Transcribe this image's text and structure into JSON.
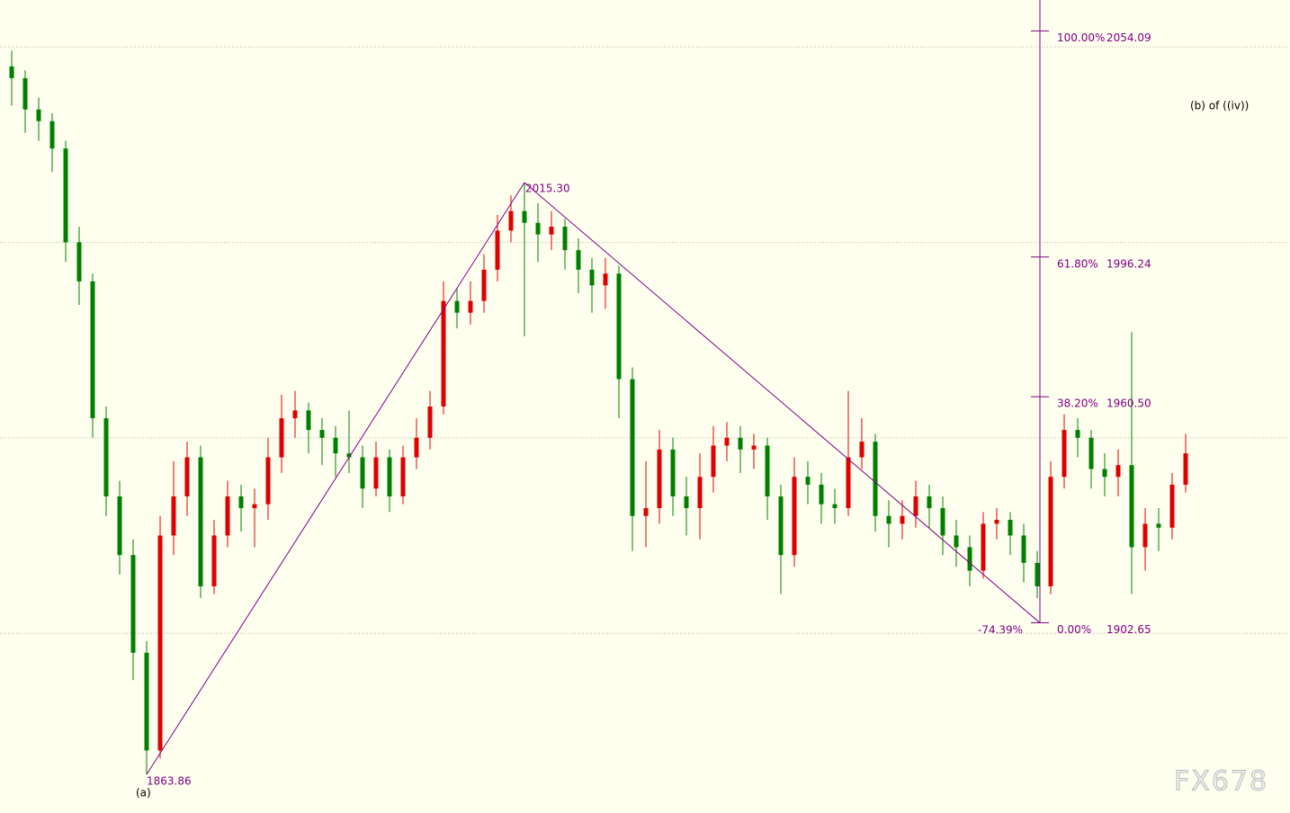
{
  "chart_data": {
    "type": "candlestick",
    "up_color": "#e00000",
    "down_color": "#008000",
    "ylim": [
      1854,
      2062
    ],
    "grid_lines": [
      1900,
      1950,
      2000,
      2050
    ],
    "open": [
      2045,
      2042,
      2034,
      2031,
      2024,
      2000,
      1990,
      1955,
      1935,
      1920,
      1895,
      1870,
      1925,
      1935,
      1945,
      1912,
      1925,
      1935,
      1932,
      1933,
      1945,
      1955,
      1957,
      1952,
      1950,
      1946,
      1945,
      1937,
      1945,
      1935,
      1945,
      1950,
      1958,
      1985,
      1982,
      1985,
      1993,
      2003,
      2008,
      2005,
      2002,
      2004,
      1998,
      1993,
      1989,
      1992,
      1965,
      1930,
      1932,
      1947,
      1935,
      1932,
      1940,
      1948,
      1950,
      1947,
      1948,
      1935,
      1920,
      1940,
      1938,
      1933,
      1932,
      1945,
      1949,
      1930,
      1928,
      1930,
      1935,
      1932,
      1925,
      1922,
      1916,
      1928,
      1929,
      1925,
      1918,
      1912,
      1940,
      1952,
      1950,
      1942,
      1940,
      1943,
      1922,
      1928,
      1927,
      1938
    ],
    "high": [
      2049,
      2044,
      2037,
      2033,
      2026,
      2004,
      1992,
      1958,
      1939,
      1924,
      1898,
      1930,
      1944,
      1949,
      1948,
      1929,
      1939,
      1938,
      1937,
      1950,
      1961,
      1962,
      1959,
      1955,
      1953,
      1957,
      1948,
      1949,
      1947,
      1948,
      1955,
      1962,
      1990,
      1988,
      1990,
      1997,
      2007,
      2012,
      2015.3,
      2010,
      2008,
      2006,
      2001,
      1996,
      1996,
      1994,
      1968,
      1944,
      1952,
      1950,
      1940,
      1946,
      1953,
      1954,
      1953,
      1951,
      1950,
      1938,
      1945,
      1944,
      1941,
      1937,
      1962,
      1955,
      1951,
      1934,
      1934,
      1939,
      1938,
      1935,
      1929,
      1925,
      1931,
      1932,
      1931,
      1928,
      1921,
      1944,
      1956,
      1955,
      1952,
      1946,
      1947,
      1977,
      1932,
      1932,
      1941,
      1951
    ],
    "low": [
      2035,
      2028,
      2026,
      2018,
      1995,
      1984,
      1950,
      1930,
      1915,
      1888,
      1863.86,
      1868,
      1920,
      1930,
      1909,
      1910,
      1922,
      1926,
      1922,
      1929,
      1941,
      1950,
      1946,
      1943,
      1940,
      1941,
      1932,
      1935,
      1931,
      1933,
      1942,
      1947,
      1956,
      1978,
      1979,
      1982,
      1990,
      2000,
      1976,
      1995,
      1998,
      1993,
      1987,
      1982,
      1983,
      1955,
      1921,
      1922,
      1928,
      1930,
      1925,
      1924,
      1936,
      1944,
      1941,
      1942,
      1929,
      1910,
      1917,
      1933,
      1928,
      1928,
      1930,
      1942,
      1926,
      1922,
      1924,
      1927,
      1927,
      1920,
      1917,
      1912,
      1914,
      1924,
      1920,
      1913,
      1909,
      1910,
      1937,
      1945,
      1937,
      1935,
      1935,
      1910,
      1916,
      1921,
      1924,
      1936
    ],
    "close": [
      2042,
      2034,
      2031,
      2024,
      2000,
      1990,
      1955,
      1935,
      1920,
      1895,
      1870,
      1925,
      1935,
      1945,
      1912,
      1925,
      1935,
      1932,
      1933,
      1945,
      1955,
      1957,
      1952,
      1950,
      1946,
      1945,
      1937,
      1945,
      1935,
      1945,
      1950,
      1958,
      1985,
      1982,
      1985,
      1993,
      2003,
      2008,
      2005,
      2002,
      2004,
      1998,
      1993,
      1989,
      1992,
      1965,
      1930,
      1932,
      1947,
      1935,
      1932,
      1940,
      1948,
      1950,
      1947,
      1948,
      1935,
      1920,
      1940,
      1938,
      1933,
      1932,
      1945,
      1949,
      1930,
      1928,
      1930,
      1935,
      1932,
      1925,
      1922,
      1916,
      1928,
      1929,
      1925,
      1918,
      1912,
      1940,
      1952,
      1950,
      1942,
      1940,
      1943,
      1922,
      1928,
      1927,
      1938,
      1946
    ],
    "swing_low": {
      "value": 1863.86,
      "wave": "(a)"
    },
    "swing_high": {
      "value": 2015.3,
      "label": "2015.30"
    },
    "wave_label": "(b) of ((iv))",
    "fib_color": "#800080",
    "fib_levels": [
      {
        "percent": "100.00%",
        "value": 2054.09,
        "label": "2054.09"
      },
      {
        "percent": "61.80%",
        "value": 1996.24,
        "label": "1996.24"
      },
      {
        "percent": "38.20%",
        "value": 1960.5,
        "label": "1960.50"
      },
      {
        "percent": "0.00%",
        "value": 1902.65,
        "label": "1902.65"
      }
    ],
    "extension_label": "-74.39%",
    "watermark": "FX678"
  }
}
